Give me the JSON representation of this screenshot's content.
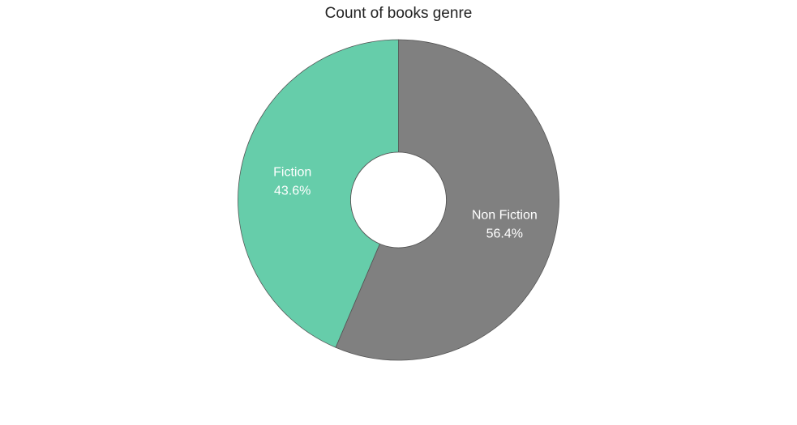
{
  "chart_data": {
    "type": "pie",
    "title": "Count of books genre",
    "donut": true,
    "slices": [
      {
        "label": "Non Fiction",
        "percent_label": "56.4%",
        "value": 56.4,
        "color": "#808080"
      },
      {
        "label": "Fiction",
        "percent_label": "43.6%",
        "value": 43.6,
        "color": "#66cdaa"
      }
    ],
    "start": "top",
    "direction": "clockwise"
  }
}
